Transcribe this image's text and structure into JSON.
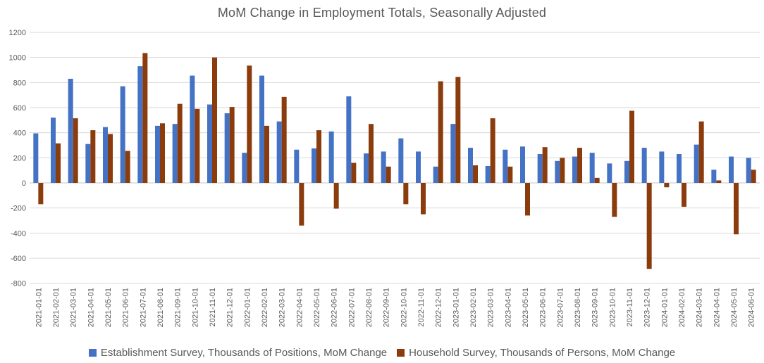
{
  "chart_data": {
    "type": "bar",
    "title": "MoM Change in Employment Totals, Seasonally Adjusted",
    "xlabel": "",
    "ylabel": "",
    "ylim": [
      -800,
      1200
    ],
    "ytick_step": 200,
    "ytick_labels": [
      "1200",
      "1000",
      "800",
      "600",
      "400",
      "200",
      "0",
      "-200",
      "-400",
      "-600",
      "-800"
    ],
    "grid": true,
    "legend_position": "bottom",
    "categories": [
      "2021-01-01",
      "2021-02-01",
      "2021-03-01",
      "2021-04-01",
      "2021-05-01",
      "2021-06-01",
      "2021-07-01",
      "2021-08-01",
      "2021-09-01",
      "2021-10-01",
      "2021-11-01",
      "2021-12-01",
      "2022-01-01",
      "2022-02-01",
      "2022-03-01",
      "2022-04-01",
      "2022-05-01",
      "2022-06-01",
      "2022-07-01",
      "2022-08-01",
      "2022-09-01",
      "2022-10-01",
      "2022-11-01",
      "2022-12-01",
      "2023-01-01",
      "2023-02-01",
      "2023-03-01",
      "2023-04-01",
      "2023-05-01",
      "2023-06-01",
      "2023-07-01",
      "2023-08-01",
      "2023-09-01",
      "2023-10-01",
      "2023-11-01",
      "2023-12-01",
      "2024-01-01",
      "2024-02-01",
      "2024-03-01",
      "2024-04-01",
      "2024-05-01",
      "2024-06-01"
    ],
    "series": [
      {
        "name": "Establishment Survey, Thousands of Positions, MoM Change",
        "color": "#4472C4",
        "values": [
          395,
          520,
          830,
          310,
          445,
          770,
          930,
          455,
          470,
          855,
          625,
          555,
          240,
          855,
          490,
          265,
          275,
          410,
          690,
          235,
          250,
          355,
          250,
          130,
          470,
          280,
          135,
          265,
          290,
          230,
          175,
          210,
          240,
          155,
          175,
          280,
          250,
          230,
          305,
          105,
          210,
          200
        ]
      },
      {
        "name": "Household Survey, Thousands of Persons, MoM Change",
        "color": "#8B3C0C",
        "values": [
          -170,
          315,
          515,
          420,
          390,
          255,
          1035,
          475,
          630,
          590,
          1000,
          605,
          935,
          455,
          685,
          -340,
          420,
          -205,
          160,
          470,
          130,
          -170,
          -250,
          810,
          845,
          140,
          515,
          130,
          -260,
          285,
          200,
          280,
          40,
          -270,
          575,
          -685,
          -35,
          -190,
          490,
          20,
          -410,
          105
        ]
      }
    ]
  },
  "colors": {
    "title_text": "#595959",
    "axis_text": "#595959",
    "gridline": "#D9D9D9",
    "zero_line": "#C6C6C6",
    "background": "#FFFFFF"
  }
}
